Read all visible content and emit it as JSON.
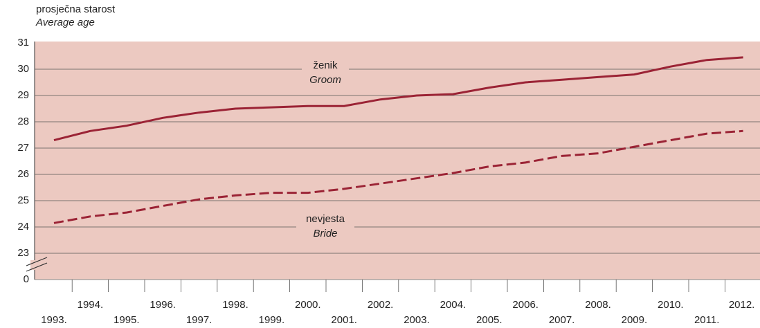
{
  "chart_data": {
    "type": "line",
    "y_title": [
      "prosječna starost",
      "Average age"
    ],
    "categories": [
      "1993.",
      "1994.",
      "1995.",
      "1996.",
      "1997.",
      "1998.",
      "1999.",
      "2000.",
      "2001.",
      "2002.",
      "2003.",
      "2004.",
      "2005.",
      "2006.",
      "2007.",
      "2008.",
      "2009.",
      "2010.",
      "2011.",
      "2012."
    ],
    "series": [
      {
        "name": "ženik",
        "name_en": "Groom",
        "color": "#9b2335",
        "linestyle": "solid",
        "values": [
          27.3,
          27.65,
          27.85,
          28.15,
          28.35,
          28.5,
          28.55,
          28.6,
          28.6,
          28.85,
          29.0,
          29.05,
          29.3,
          29.5,
          29.6,
          29.7,
          29.8,
          30.1,
          30.35,
          30.45
        ]
      },
      {
        "name": "nevjesta",
        "name_en": "Bride",
        "color": "#9b2335",
        "linestyle": "dashed",
        "values": [
          24.15,
          24.4,
          24.55,
          24.8,
          25.05,
          25.2,
          25.3,
          25.3,
          25.45,
          25.65,
          25.85,
          26.05,
          26.3,
          26.45,
          26.7,
          26.8,
          27.05,
          27.3,
          27.55,
          27.65
        ]
      }
    ],
    "ylim": [
      23,
      31
    ],
    "yticks": [
      0,
      23,
      24,
      25,
      26,
      27,
      28,
      29,
      30,
      31
    ],
    "axis_break": true,
    "grid": true
  }
}
